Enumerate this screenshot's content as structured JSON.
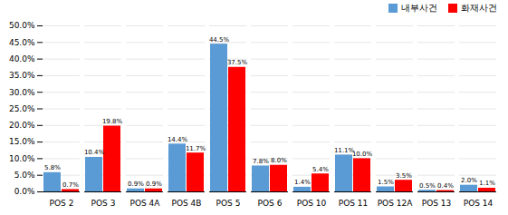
{
  "chart_data": {
    "type": "bar",
    "categories": [
      "POS 2",
      "POS 3",
      "POS 4A",
      "POS 4B",
      "POS 5",
      "POS 6",
      "POS 10",
      "POS 11",
      "POS 12A",
      "POS 13",
      "POS 14"
    ],
    "series": [
      {
        "name": "내부사건",
        "color": "#5B9BD5",
        "values": [
          5.8,
          10.4,
          0.9,
          14.4,
          44.5,
          7.8,
          1.4,
          11.1,
          1.5,
          0.5,
          2.0
        ],
        "value_labels": [
          "5.8%",
          "10.4%",
          "0.9%",
          "14.4%",
          "44.5%",
          "7.8%",
          "1.4%",
          "11.1%",
          "1.5%",
          "0.5%",
          "2.0%"
        ]
      },
      {
        "name": "화재사건",
        "color": "#FF0000",
        "values": [
          0.7,
          19.8,
          0.9,
          11.7,
          37.5,
          8.0,
          5.4,
          10.0,
          3.5,
          0.4,
          1.1
        ],
        "value_labels": [
          "0.7%",
          "19.8%",
          "0.9%",
          "11.7%",
          "37.5%",
          "8.0%",
          "5.4%",
          "10.0%",
          "3.5%",
          "0.4%",
          "1.1%"
        ]
      }
    ],
    "ylim": [
      0,
      50
    ],
    "yticks": [
      {
        "value": 0,
        "label": "0.0%"
      },
      {
        "value": 5,
        "label": "5.0%"
      },
      {
        "value": 10,
        "label": "10.0%"
      },
      {
        "value": 15,
        "label": "15.0%"
      },
      {
        "value": 20,
        "label": "20.0%"
      },
      {
        "value": 25,
        "label": "25.0%"
      },
      {
        "value": 30,
        "label": "30.0%"
      },
      {
        "value": 35,
        "label": "35.0%"
      },
      {
        "value": 40,
        "label": "40.0%"
      },
      {
        "value": 45,
        "label": "45.0%"
      },
      {
        "value": 50,
        "label": "50.0%"
      }
    ],
    "grid": true,
    "legend": "upper right",
    "data_labels": true
  }
}
